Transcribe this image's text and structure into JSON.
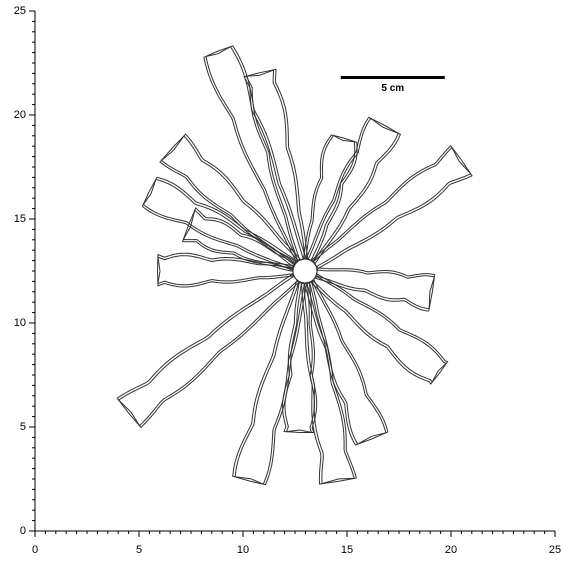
{
  "chart_data": {
    "type": "outline",
    "xlim": [
      0,
      25
    ],
    "ylim": [
      0,
      25
    ],
    "xticks": [
      0,
      5,
      10,
      15,
      20,
      25
    ],
    "yticks": [
      0,
      5,
      10,
      15,
      20,
      25
    ],
    "scale_bar": {
      "x": [
        14.7,
        19.7
      ],
      "y": 21.8,
      "label": "5 cm"
    }
  }
}
